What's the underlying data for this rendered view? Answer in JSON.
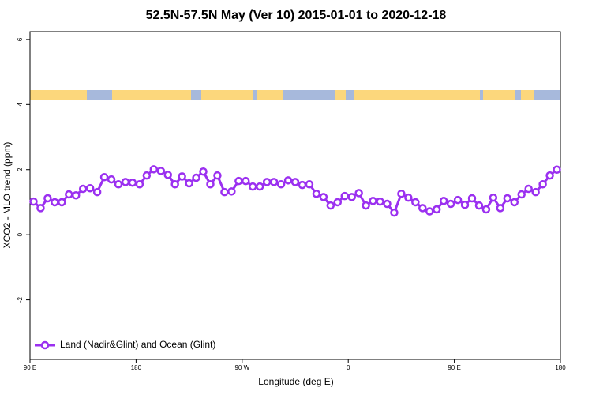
{
  "chart_data": {
    "type": "line",
    "title": "52.5N-57.5N May (Ver 10)   2015-01-01 to 2020-12-18",
    "xlabel": "Longitude (deg E)",
    "ylabel": "XCO2 - MLO trend (ppm)",
    "xlim": [
      90,
      540
    ],
    "ylim": [
      -3.83,
      6.24
    ],
    "xticks": [
      {
        "value": 90,
        "label": "90 E"
      },
      180,
      {
        "value": 270,
        "label": "90 W"
      },
      {
        "value": 360,
        "label": "0"
      },
      {
        "value": 450,
        "label": "90 E"
      },
      {
        "value": 540,
        "label": "180"
      }
    ],
    "yticks": [
      -2,
      0,
      2,
      4,
      6
    ],
    "legend": "lower left",
    "x": [
      93,
      99,
      105,
      111,
      117,
      123,
      129,
      135,
      141,
      147,
      153,
      159,
      165,
      171,
      177,
      183,
      189,
      195,
      201,
      207,
      213,
      219,
      225,
      231,
      237,
      243,
      249,
      255,
      261,
      267,
      273,
      279,
      285,
      291,
      297,
      303,
      309,
      315,
      321,
      327,
      333,
      339,
      345,
      351,
      357,
      363,
      369,
      375,
      381,
      387,
      393,
      399,
      405,
      411,
      417,
      423,
      429,
      435,
      441,
      447,
      453,
      459,
      465,
      471,
      477,
      483,
      489,
      495,
      501,
      507,
      513,
      519,
      525,
      531,
      537
    ],
    "series": [
      {
        "name": "Land (Nadir&Glint) and Ocean (Glint)",
        "color": "#9b30f0",
        "values": [
          1.02,
          0.82,
          1.12,
          1.0,
          1.0,
          1.24,
          1.21,
          1.41,
          1.43,
          1.31,
          1.77,
          1.7,
          1.55,
          1.62,
          1.6,
          1.55,
          1.82,
          2.01,
          1.96,
          1.84,
          1.55,
          1.79,
          1.58,
          1.75,
          1.94,
          1.55,
          1.82,
          1.31,
          1.33,
          1.65,
          1.65,
          1.48,
          1.48,
          1.62,
          1.62,
          1.55,
          1.67,
          1.62,
          1.53,
          1.55,
          1.26,
          1.16,
          0.9,
          1.0,
          1.19,
          1.16,
          1.28,
          0.9,
          1.04,
          1.02,
          0.95,
          0.68,
          1.26,
          1.14,
          1.0,
          0.82,
          0.72,
          0.78,
          1.04,
          0.95,
          1.07,
          0.92,
          1.12,
          0.9,
          0.78,
          1.14,
          0.82,
          1.12,
          1.0,
          1.24,
          1.41,
          1.31,
          1.55,
          1.82,
          2.0
        ]
      }
    ]
  }
}
